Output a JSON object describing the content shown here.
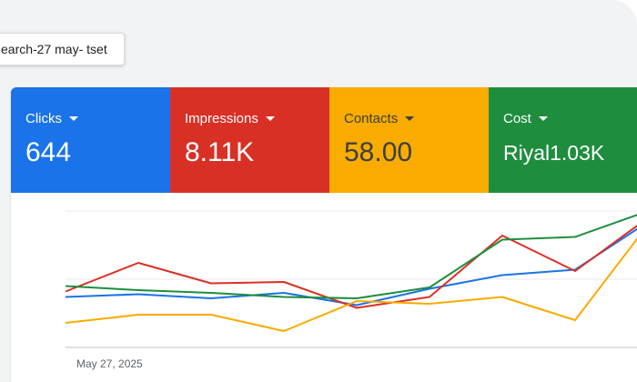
{
  "campaign": {
    "label": "earch-27 may- tset"
  },
  "metrics": [
    {
      "label": "Clicks",
      "value": "644",
      "color": "#1a73e8",
      "text_color": "#ffffff"
    },
    {
      "label": "Impressions",
      "value": "8.11K",
      "color": "#d93025",
      "text_color": "#ffffff"
    },
    {
      "label": "Contacts",
      "value": "58.00",
      "color": "#f9ab00",
      "text_color": "#3c4043"
    },
    {
      "label": "Cost",
      "value": "Riyal1.03K",
      "color": "#1e8e3e",
      "text_color": "#ffffff"
    }
  ],
  "chart_data": {
    "type": "line",
    "x": [
      0,
      1,
      2,
      3,
      4,
      5,
      6,
      7,
      8
    ],
    "x_tick_labels": [
      "May 27, 2025"
    ],
    "ylim": [
      0,
      100
    ],
    "grid": true,
    "series": [
      {
        "color": "#1a73e8",
        "values": [
          37,
          39,
          36,
          40,
          31,
          43,
          53,
          57,
          92
        ]
      },
      {
        "color": "#d93025",
        "values": [
          41,
          62,
          47,
          48,
          29,
          37,
          82,
          56,
          95
        ]
      },
      {
        "color": "#f9ab00",
        "values": [
          18,
          24,
          24,
          12,
          34,
          32,
          37,
          20,
          90
        ]
      },
      {
        "color": "#1e8e3e",
        "values": [
          45,
          42,
          40,
          37,
          36,
          44,
          79,
          81,
          100
        ]
      }
    ]
  }
}
